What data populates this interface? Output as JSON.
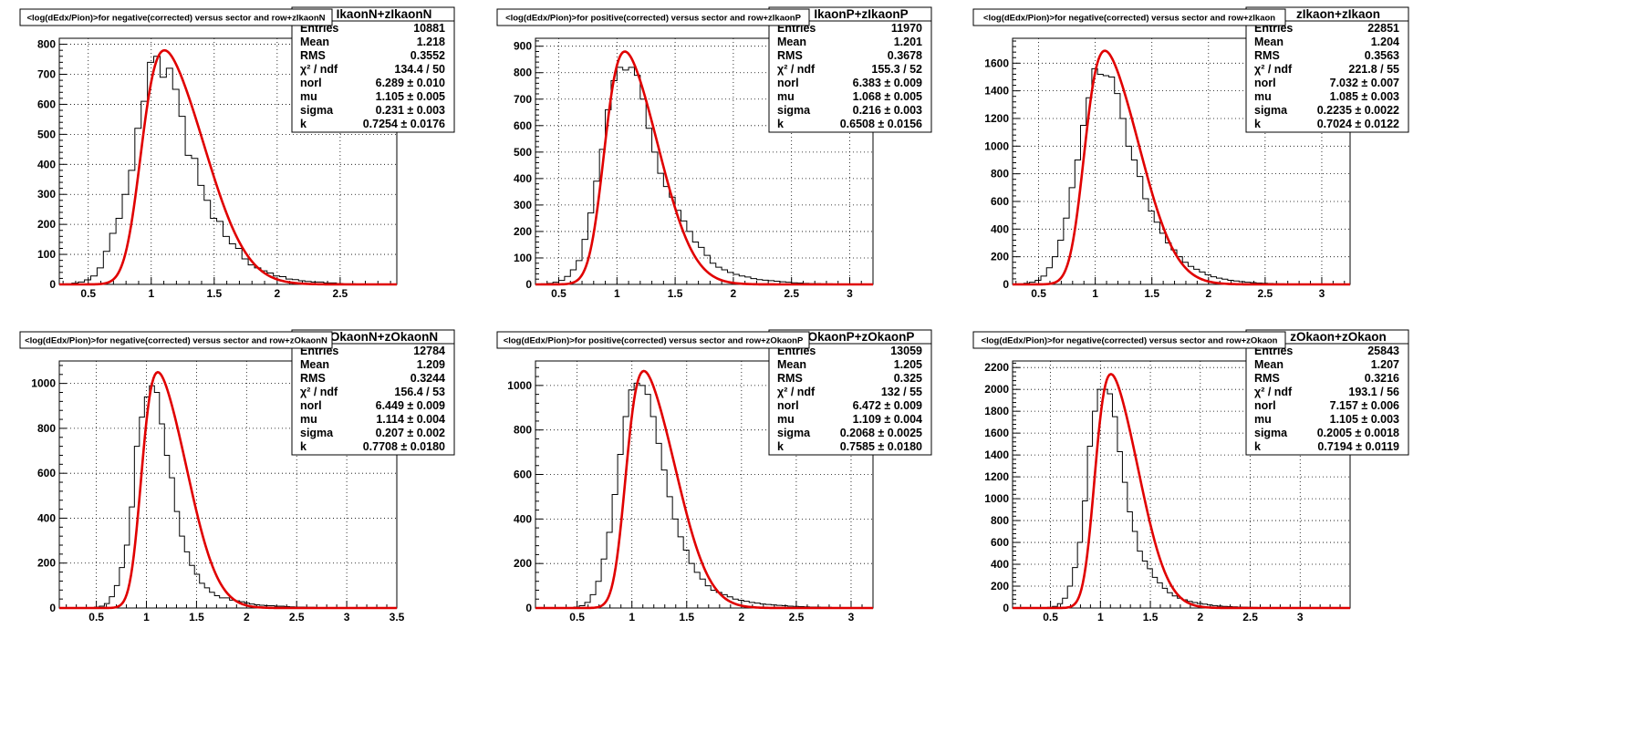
{
  "colors": {
    "histogram": "#000000",
    "fit": "#e00000",
    "grid": "#000000",
    "background": "#ffffff"
  },
  "chart_data": [
    {
      "type": "histogram",
      "title": "<log(dEdx/Pion)>for negative(corrected) versus sector and row+zIkaonN",
      "hist_name": "IkaonN+zIkaonN",
      "stats": [
        {
          "label": "Entries",
          "value": "10881"
        },
        {
          "label": "Mean",
          "value": "1.218"
        },
        {
          "label": "RMS",
          "value": "0.3552"
        },
        {
          "label": "χ² / ndf",
          "value": "134.4 / 50"
        },
        {
          "label": "norl",
          "value": "6.289 ± 0.010"
        },
        {
          "label": "mu",
          "value": "1.105 ± 0.005"
        },
        {
          "label": "sigma",
          "value": "0.231 ± 0.003"
        },
        {
          "label": "k",
          "value": "0.7254 ± 0.0176"
        }
      ],
      "xlim": [
        0.27,
        2.95
      ],
      "ylim": [
        0,
        820
      ],
      "xticks": [
        0.5,
        1,
        1.5,
        2,
        2.5
      ],
      "yticks": [
        0,
        100,
        200,
        300,
        400,
        500,
        600,
        700,
        800
      ],
      "grid": true,
      "fit": {
        "amp": 780,
        "mu": 1.105,
        "sigma": 0.231,
        "k": 0.7254
      },
      "bins": {
        "start": 0.27,
        "width": 0.05,
        "values": [
          1,
          2,
          4,
          8,
          15,
          28,
          55,
          110,
          170,
          220,
          300,
          380,
          520,
          610,
          740,
          760,
          690,
          720,
          650,
          560,
          430,
          420,
          330,
          280,
          220,
          210,
          160,
          135,
          120,
          85,
          65,
          55,
          45,
          38,
          28,
          26,
          18,
          16,
          12,
          10,
          8,
          8,
          5,
          5,
          3,
          2,
          2,
          1,
          1,
          1,
          1,
          0,
          0,
          0
        ]
      }
    },
    {
      "type": "histogram",
      "title": "<log(dEdx/Pion)>for positive(corrected) versus sector and row+zIkaonP",
      "hist_name": "IkaonP+zIkaonP",
      "stats": [
        {
          "label": "Entries",
          "value": "11970"
        },
        {
          "label": "Mean",
          "value": "1.201"
        },
        {
          "label": "RMS",
          "value": "0.3678"
        },
        {
          "label": "χ² / ndf",
          "value": "155.3 / 52"
        },
        {
          "label": "norl",
          "value": "6.383 ± 0.009"
        },
        {
          "label": "mu",
          "value": "1.068 ± 0.005"
        },
        {
          "label": "sigma",
          "value": "0.216 ± 0.003"
        },
        {
          "label": "k",
          "value": "0.6508 ± 0.0156"
        }
      ],
      "xlim": [
        0.3,
        3.2
      ],
      "ylim": [
        0,
        930
      ],
      "xticks": [
        0.5,
        1,
        1.5,
        2,
        2.5,
        3
      ],
      "yticks": [
        0,
        100,
        200,
        300,
        400,
        500,
        600,
        700,
        800,
        900
      ],
      "grid": true,
      "fit": {
        "amp": 880,
        "mu": 1.068,
        "sigma": 0.216,
        "k": 0.6508
      },
      "bins": {
        "start": 0.3,
        "width": 0.05,
        "values": [
          1,
          2,
          4,
          8,
          15,
          30,
          55,
          90,
          170,
          270,
          390,
          510,
          660,
          770,
          820,
          810,
          820,
          790,
          700,
          590,
          500,
          420,
          370,
          330,
          280,
          240,
          200,
          160,
          140,
          110,
          80,
          65,
          55,
          45,
          38,
          32,
          28,
          22,
          18,
          16,
          14,
          12,
          10,
          8,
          6,
          5,
          4,
          3,
          3,
          2,
          2,
          1,
          1,
          1,
          1,
          0,
          0,
          0
        ]
      }
    },
    {
      "type": "histogram",
      "title": "<log(dEdx/Pion)>for negative(corrected) versus sector and row+zIkaon",
      "hist_name": "zIkaon+zIkaon",
      "stats": [
        {
          "label": "Entries",
          "value": "22851"
        },
        {
          "label": "Mean",
          "value": "1.204"
        },
        {
          "label": "RMS",
          "value": "0.3563"
        },
        {
          "label": "χ² / ndf",
          "value": "221.8 / 55"
        },
        {
          "label": "norl",
          "value": "7.032 ± 0.007"
        },
        {
          "label": "mu",
          "value": "1.085 ± 0.003"
        },
        {
          "label": "sigma",
          "value": "0.2235 ± 0.0022"
        },
        {
          "label": "k",
          "value": "0.7024 ± 0.0122"
        }
      ],
      "xlim": [
        0.27,
        3.25
      ],
      "ylim": [
        0,
        1780
      ],
      "xticks": [
        0.5,
        1,
        1.5,
        2,
        2.5,
        3
      ],
      "yticks": [
        0,
        200,
        400,
        600,
        800,
        1000,
        1200,
        1400,
        1600
      ],
      "grid": true,
      "fit": {
        "amp": 1690,
        "mu": 1.085,
        "sigma": 0.2235,
        "k": 0.7024
      },
      "bins": {
        "start": 0.27,
        "width": 0.05,
        "values": [
          2,
          4,
          8,
          16,
          30,
          60,
          120,
          200,
          320,
          480,
          700,
          900,
          1150,
          1350,
          1560,
          1520,
          1510,
          1500,
          1380,
          1200,
          1000,
          900,
          780,
          620,
          530,
          450,
          370,
          300,
          250,
          200,
          160,
          130,
          110,
          90,
          70,
          55,
          45,
          38,
          30,
          25,
          20,
          16,
          13,
          10,
          8,
          7,
          5,
          4,
          3,
          3,
          2,
          2,
          1,
          1,
          1,
          1,
          0,
          0,
          0,
          0
        ]
      }
    },
    {
      "type": "histogram",
      "title": "<log(dEdx/Pion)>for negative(corrected) versus sector and row+zOkaonN",
      "hist_name": "OkaonN+zOkaonN",
      "stats": [
        {
          "label": "Entries",
          "value": "12784"
        },
        {
          "label": "Mean",
          "value": "1.209"
        },
        {
          "label": "RMS",
          "value": "0.3244"
        },
        {
          "label": "χ² / ndf",
          "value": "156.4 / 53"
        },
        {
          "label": "norl",
          "value": "6.449 ± 0.009"
        },
        {
          "label": "mu",
          "value": "1.114 ± 0.004"
        },
        {
          "label": "sigma",
          "value": "0.207 ± 0.002"
        },
        {
          "label": "k",
          "value": "0.7708 ± 0.0180"
        }
      ],
      "xlim": [
        0.13,
        3.5
      ],
      "ylim": [
        0,
        1100
      ],
      "xticks": [
        0.5,
        1,
        1.5,
        2,
        2.5,
        3,
        3.5
      ],
      "yticks": [
        0,
        200,
        400,
        600,
        800,
        1000
      ],
      "grid": true,
      "fit": {
        "amp": 1050,
        "mu": 1.114,
        "sigma": 0.207,
        "k": 0.7708
      },
      "bins": {
        "start": 0.13,
        "width": 0.05,
        "values": [
          0,
          0,
          0,
          0,
          0,
          1,
          2,
          4,
          8,
          20,
          50,
          100,
          180,
          280,
          450,
          720,
          850,
          940,
          990,
          960,
          820,
          680,
          580,
          430,
          320,
          250,
          190,
          150,
          110,
          90,
          70,
          55,
          45,
          45,
          35,
          32,
          28,
          22,
          18,
          14,
          12,
          10,
          10,
          8,
          8,
          6,
          5,
          4,
          4,
          3,
          3,
          2,
          2,
          1,
          1,
          1,
          1,
          1,
          1,
          1,
          0,
          0,
          0,
          0,
          0,
          0,
          0,
          0
        ]
      }
    },
    {
      "type": "histogram",
      "title": "<log(dEdx/Pion)>for positive(corrected) versus sector and row+zOkaonP",
      "hist_name": "OkaonP+zOkaonP",
      "stats": [
        {
          "label": "Entries",
          "value": "13059"
        },
        {
          "label": "Mean",
          "value": "1.205"
        },
        {
          "label": "RMS",
          "value": "0.325"
        },
        {
          "label": "χ² / ndf",
          "value": "132 / 55"
        },
        {
          "label": "norl",
          "value": "6.472 ± 0.009"
        },
        {
          "label": "mu",
          "value": "1.109 ± 0.004"
        },
        {
          "label": "sigma",
          "value": "0.2068 ± 0.0025"
        },
        {
          "label": "k",
          "value": "0.7585 ± 0.0180"
        }
      ],
      "xlim": [
        0.12,
        3.2
      ],
      "ylim": [
        0,
        1110
      ],
      "xticks": [
        0.5,
        1,
        1.5,
        2,
        2.5,
        3
      ],
      "yticks": [
        0,
        200,
        400,
        600,
        800,
        1000
      ],
      "grid": true,
      "fit": {
        "amp": 1065,
        "mu": 1.109,
        "sigma": 0.2068,
        "k": 0.7585
      },
      "bins": {
        "start": 0.12,
        "width": 0.05,
        "values": [
          0,
          0,
          0,
          0,
          0,
          1,
          2,
          4,
          10,
          25,
          60,
          120,
          220,
          340,
          510,
          690,
          860,
          980,
          1010,
          1000,
          960,
          860,
          740,
          620,
          500,
          400,
          320,
          260,
          200,
          160,
          130,
          100,
          80,
          70,
          60,
          50,
          40,
          35,
          30,
          25,
          22,
          18,
          16,
          14,
          12,
          10,
          8,
          7,
          6,
          5,
          4,
          4,
          3,
          3,
          2,
          2,
          2,
          1,
          1,
          1,
          1,
          1,
          0
        ]
      }
    },
    {
      "type": "histogram",
      "title": "<log(dEdx/Pion)>for negative(corrected) versus sector and row+zOkaon",
      "hist_name": "zOkaon+zOkaon",
      "stats": [
        {
          "label": "Entries",
          "value": "25843"
        },
        {
          "label": "Mean",
          "value": "1.207"
        },
        {
          "label": "RMS",
          "value": "0.3216"
        },
        {
          "label": "χ² / ndf",
          "value": "193.1 / 56"
        },
        {
          "label": "norl",
          "value": "7.157 ± 0.006"
        },
        {
          "label": "mu",
          "value": "1.105 ± 0.003"
        },
        {
          "label": "sigma",
          "value": "0.2005 ± 0.0018"
        },
        {
          "label": "k",
          "value": "0.7194 ± 0.0119"
        }
      ],
      "xlim": [
        0.12,
        3.5
      ],
      "ylim": [
        0,
        2260
      ],
      "xticks": [
        0.5,
        1,
        1.5,
        2,
        2.5,
        3
      ],
      "yticks": [
        0,
        200,
        400,
        600,
        800,
        1000,
        1200,
        1400,
        1600,
        1800,
        2000,
        2200
      ],
      "grid": true,
      "fit": {
        "amp": 2140,
        "mu": 1.105,
        "sigma": 0.2005,
        "k": 0.7194
      },
      "bins": {
        "start": 0.12,
        "width": 0.05,
        "values": [
          0,
          0,
          0,
          0,
          0,
          1,
          3,
          6,
          15,
          40,
          90,
          200,
          370,
          600,
          980,
          1480,
          1800,
          2000,
          2000,
          1960,
          1750,
          1430,
          1150,
          880,
          700,
          520,
          430,
          360,
          280,
          230,
          180,
          140,
          110,
          90,
          75,
          60,
          50,
          42,
          35,
          28,
          22,
          18,
          15,
          12,
          10,
          8,
          7,
          6,
          5,
          4,
          3,
          3,
          2,
          2,
          2,
          1,
          1,
          1,
          1,
          1,
          1,
          0,
          0,
          0,
          0,
          0,
          0,
          0
        ]
      }
    }
  ]
}
